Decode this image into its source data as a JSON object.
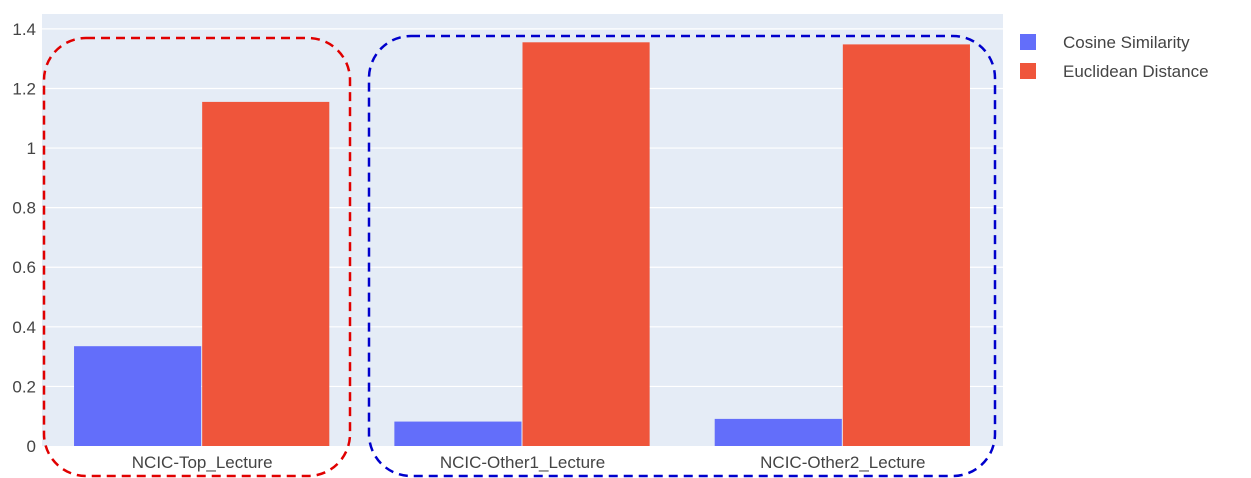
{
  "chart_data": {
    "type": "bar",
    "categories": [
      "NCIC-Top_Lecture",
      "NCIC-Other1_Lecture",
      "NCIC-Other2_Lecture"
    ],
    "series": [
      {
        "name": "Cosine Similarity",
        "values": [
          0.335,
          0.082,
          0.091
        ],
        "color": "#636efa"
      },
      {
        "name": "Euclidean Distance",
        "values": [
          1.155,
          1.355,
          1.348
        ],
        "color": "#ef553b"
      }
    ],
    "yticks": [
      "0",
      "0.2",
      "0.4",
      "0.6",
      "0.8",
      "1",
      "1.2",
      "1.4"
    ],
    "ytick_values": [
      0,
      0.2,
      0.4,
      0.6,
      0.8,
      1,
      1.2,
      1.4
    ],
    "ylim": [
      0,
      1.45
    ],
    "grid": true,
    "legend_position": "top-right",
    "plot_background": "#e5ecf6",
    "annotations": [
      {
        "shape": "dashed-rounded-box",
        "color": "#e00000",
        "groups": [
          "NCIC-Top_Lecture"
        ]
      },
      {
        "shape": "dashed-rounded-box",
        "color": "#0000cc",
        "groups": [
          "NCIC-Other1_Lecture",
          "NCIC-Other2_Lecture"
        ]
      }
    ]
  }
}
